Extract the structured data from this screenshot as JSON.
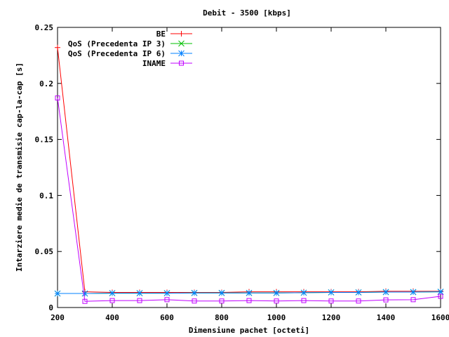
{
  "chart_data": {
    "type": "line",
    "title": "Debit - 3500 [kbps]",
    "xlabel": "Dimensiune pachet [octeti]",
    "ylabel": "Intarziere medie de transmisie cap-la-cap [s]",
    "xlim": [
      200,
      1600
    ],
    "ylim": [
      0,
      0.25
    ],
    "x_ticks": [
      "200",
      "400",
      "600",
      "800",
      "1000",
      "1200",
      "1400",
      "1600"
    ],
    "y_ticks": [
      "0",
      "0.05",
      "0.1",
      "0.15",
      "0.2",
      "0.25"
    ],
    "x_tick_values": [
      200,
      400,
      600,
      800,
      1000,
      1200,
      1400,
      1600
    ],
    "y_tick_values": [
      0,
      0.05,
      0.1,
      0.15,
      0.2,
      0.25
    ],
    "grid": false,
    "legend_position": "top-right",
    "x": [
      200,
      300,
      400,
      500,
      600,
      700,
      800,
      900,
      1000,
      1100,
      1200,
      1300,
      1400,
      1500,
      1600
    ],
    "series": [
      {
        "name": "BE",
        "color": "#ff0000",
        "marker": "plus",
        "values": [
          0.232,
          0.014,
          0.0135,
          0.0135,
          0.0135,
          0.0135,
          0.0135,
          0.014,
          0.014,
          0.014,
          0.014,
          0.014,
          0.0145,
          0.0145,
          0.0145
        ]
      },
      {
        "name": "QoS (Precedenta IP 3)",
        "color": "#00c000",
        "marker": "cross",
        "values": [
          0.0125,
          0.0125,
          0.0128,
          0.0128,
          0.0128,
          0.013,
          0.013,
          0.013,
          0.013,
          0.0132,
          0.0135,
          0.0135,
          0.0138,
          0.0138,
          0.014
        ]
      },
      {
        "name": "QoS (Precedenta IP 6)",
        "color": "#0080ff",
        "marker": "star",
        "values": [
          0.0125,
          0.0125,
          0.0128,
          0.0128,
          0.0128,
          0.013,
          0.013,
          0.013,
          0.013,
          0.0132,
          0.0135,
          0.0135,
          0.0138,
          0.0138,
          0.014
        ]
      },
      {
        "name": "INAME",
        "color": "#c000ff",
        "marker": "square",
        "values": [
          0.187,
          0.0055,
          0.0062,
          0.0062,
          0.007,
          0.0058,
          0.0058,
          0.0062,
          0.0058,
          0.0062,
          0.0058,
          0.0058,
          0.0068,
          0.007,
          0.01
        ]
      }
    ]
  }
}
